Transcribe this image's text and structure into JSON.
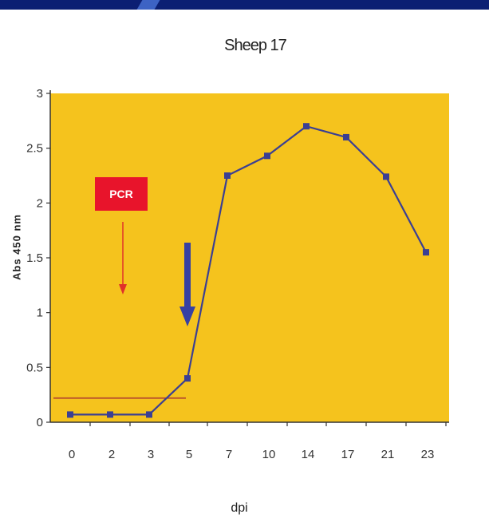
{
  "chart_data": {
    "type": "line",
    "title": "Sheep 17",
    "xlabel": "dpi",
    "ylabel": "Abs 450 nm",
    "categories": [
      "0",
      "2",
      "3",
      "5",
      "7",
      "10",
      "14",
      "17",
      "21",
      "23"
    ],
    "series": [
      {
        "values": [
          0.07,
          0.07,
          0.07,
          0.4,
          2.25,
          2.43,
          2.7,
          2.6,
          2.24,
          1.55
        ]
      }
    ],
    "ylim": [
      0,
      3
    ],
    "yticks": [
      "0",
      "0.5",
      "1",
      "1.5",
      "2",
      "2.5",
      "3"
    ],
    "cutoff": 0.22,
    "annotation": {
      "label": "PCR"
    },
    "grid": false,
    "colors": {
      "plot_bg": "#f5c31d",
      "line": "#3b3f93",
      "marker": "#3b3f93",
      "cutoff_line": "#b5482d",
      "pcr_box": "#e8142b",
      "pcr_arrow": "#e0312a",
      "blue_arrow": "#3640a3",
      "axis": "#333333"
    }
  }
}
